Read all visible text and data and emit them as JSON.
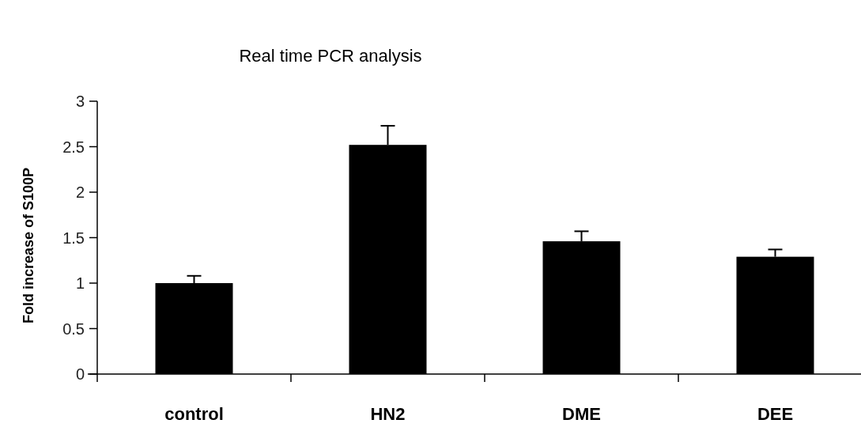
{
  "chart_data": {
    "type": "bar",
    "title": "Real time PCR analysis",
    "ylabel": "Fold increase of S100P",
    "categories": [
      "control",
      "HN2",
      "DME",
      "DEE"
    ],
    "values": [
      1.0,
      2.52,
      1.46,
      1.29
    ],
    "errors": [
      [
        1.0,
        1.08
      ],
      [
        2.52,
        2.73
      ],
      [
        1.46,
        1.57
      ],
      [
        1.29,
        1.37
      ]
    ],
    "color": "#000000",
    "ylim": [
      0,
      3
    ],
    "yticks": [
      0,
      0.5,
      1,
      1.5,
      2,
      2.5,
      3
    ]
  }
}
